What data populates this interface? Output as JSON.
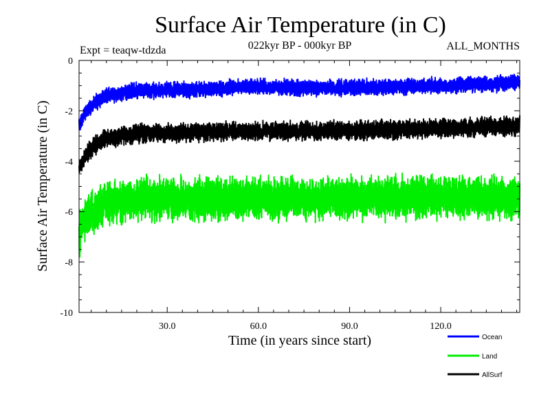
{
  "chart_data": {
    "type": "line",
    "title": "Surface Air Temperature (in C)",
    "subtitle": "022kyr BP - 000kyr BP",
    "experiment_label": "Expt = teaqw-tdzda",
    "months_label": "ALL_MONTHS",
    "xlabel": "Time (in years since start)",
    "ylabel": "Surface Air Temperature (in C)",
    "xlim": [
      1,
      146
    ],
    "ylim": [
      -10,
      0
    ],
    "x_ticks": [
      30,
      60,
      90,
      120
    ],
    "x_tick_labels": [
      "30.0",
      "60.0",
      "90.0",
      "120.0"
    ],
    "y_ticks": [
      0,
      -2,
      -4,
      -6,
      -8,
      -10
    ],
    "y_tick_labels": [
      "0",
      "-2",
      "-4",
      "-6",
      "-8",
      "-10"
    ],
    "legend_position": "bottom-right",
    "series": [
      {
        "name": "Ocean",
        "color": "#0000ff",
        "samples_per_year": 12,
        "anchors": [
          [
            1,
            -2.6
          ],
          [
            3,
            -2.1
          ],
          [
            6,
            -1.7
          ],
          [
            10,
            -1.4
          ],
          [
            20,
            -1.2
          ],
          [
            40,
            -1.15
          ],
          [
            60,
            -1.05
          ],
          [
            80,
            -1.1
          ],
          [
            100,
            -1.05
          ],
          [
            120,
            -1.0
          ],
          [
            146,
            -0.9
          ]
        ],
        "amplitude": 0.28
      },
      {
        "name": "Land",
        "color": "#00ee00",
        "samples_per_year": 12,
        "anchors": [
          [
            1,
            -7.0
          ],
          [
            3,
            -6.3
          ],
          [
            6,
            -6.0
          ],
          [
            10,
            -5.7
          ],
          [
            20,
            -5.5
          ],
          [
            40,
            -5.5
          ],
          [
            60,
            -5.45
          ],
          [
            80,
            -5.5
          ],
          [
            100,
            -5.45
          ],
          [
            120,
            -5.4
          ],
          [
            146,
            -5.5
          ]
        ],
        "amplitude": 0.75
      },
      {
        "name": "AllSurf",
        "color": "#000000",
        "samples_per_year": 12,
        "anchors": [
          [
            1,
            -4.3
          ],
          [
            3,
            -3.8
          ],
          [
            6,
            -3.4
          ],
          [
            10,
            -3.1
          ],
          [
            20,
            -2.9
          ],
          [
            40,
            -2.85
          ],
          [
            60,
            -2.8
          ],
          [
            80,
            -2.8
          ],
          [
            100,
            -2.75
          ],
          [
            120,
            -2.7
          ],
          [
            146,
            -2.6
          ]
        ],
        "amplitude": 0.33
      }
    ]
  }
}
